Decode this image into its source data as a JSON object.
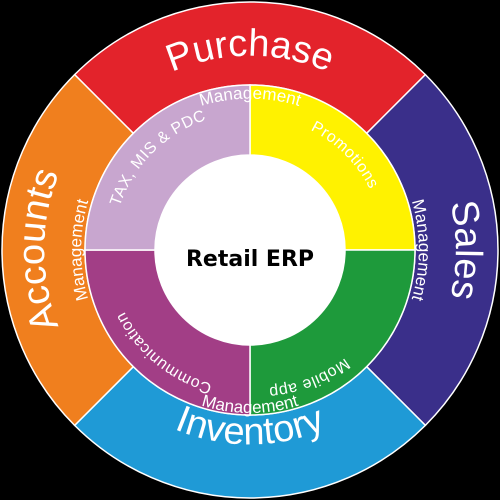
{
  "center": {
    "title": "Retail ERP"
  },
  "outer_ring": [
    {
      "id": "purchase",
      "title": "Purchase",
      "subtitle": "Management",
      "color": "#e3232b"
    },
    {
      "id": "sales",
      "title": "Sales",
      "subtitle": "Management",
      "color": "#3a2f8a"
    },
    {
      "id": "inventory",
      "title": "Inventory",
      "subtitle": "Management",
      "color": "#1f9ad6"
    },
    {
      "id": "accounts",
      "title": "Accounts",
      "subtitle": "Management",
      "color": "#f07f1e"
    }
  ],
  "inner_ring": [
    {
      "id": "promotions",
      "label": "Promotions",
      "color": "#fff200"
    },
    {
      "id": "mobile-app",
      "label": "Mobile app",
      "color": "#1e9a3b"
    },
    {
      "id": "communication",
      "label": "Communication",
      "color": "#a23e86"
    },
    {
      "id": "tax-mis-pdc",
      "label": "TAX, MIS & PDC",
      "color": "#c8a6cf"
    }
  ],
  "colors": {
    "background": "#000000",
    "center_fill": "#ffffff",
    "separator": "#ffffff"
  }
}
